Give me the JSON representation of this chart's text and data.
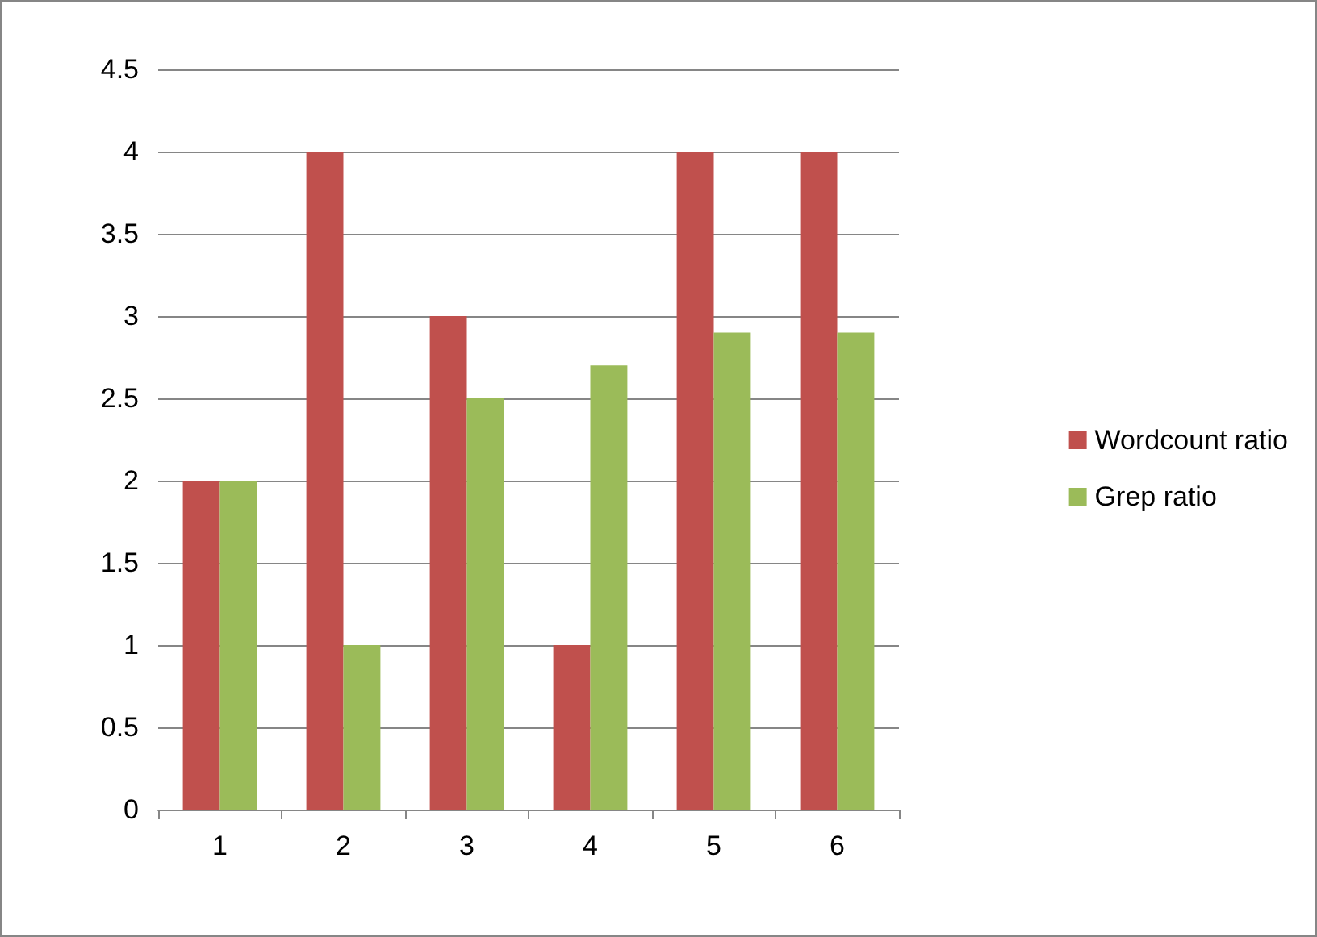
{
  "chart_data": {
    "type": "bar",
    "categories": [
      "1",
      "2",
      "3",
      "4",
      "5",
      "6"
    ],
    "series": [
      {
        "name": "Wordcount ratio",
        "color": "#c0504d",
        "values": [
          2,
          4,
          3,
          1,
          4,
          4
        ]
      },
      {
        "name": "Grep ratio",
        "color": "#9bbb59",
        "values": [
          2,
          1,
          2.5,
          2.7,
          2.9,
          2.9
        ]
      }
    ],
    "ylim": [
      0,
      4.5
    ],
    "yticks": [
      0,
      0.5,
      1,
      1.5,
      2,
      2.5,
      3,
      3.5,
      4,
      4.5
    ],
    "grid": "y",
    "legend": "right"
  }
}
